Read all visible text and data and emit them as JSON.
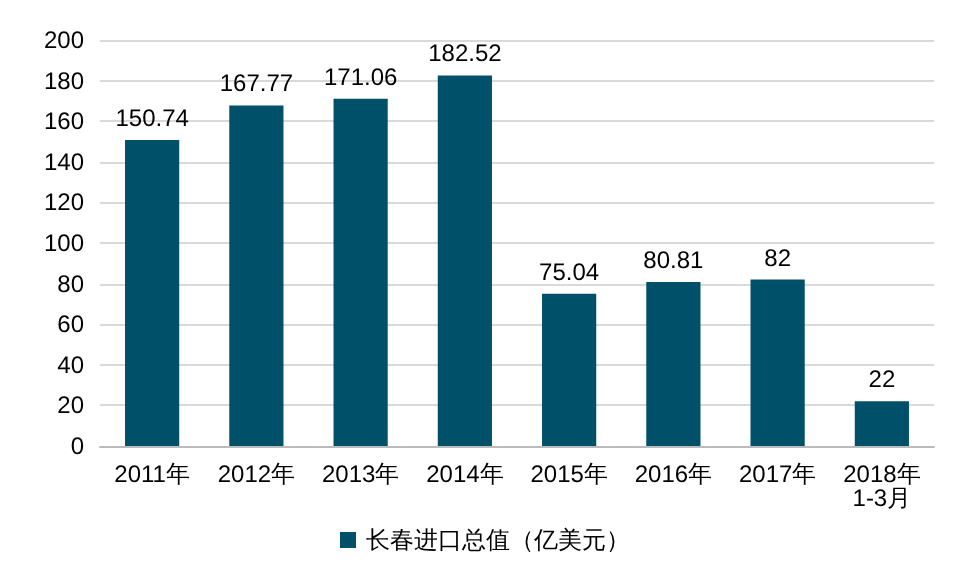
{
  "chart_data": {
    "type": "bar",
    "categories": [
      "2011年",
      "2012年",
      "2013年",
      "2014年",
      "2015年",
      "2016年",
      "2017年",
      "2018年\n1-3月"
    ],
    "series": [
      {
        "name": "长春进口总值（亿美元）",
        "color": "#00506a",
        "values": [
          150.74,
          167.77,
          171.06,
          182.52,
          75.04,
          80.81,
          82,
          22
        ]
      }
    ],
    "ylim": [
      0,
      200
    ],
    "yticks": [
      0,
      20,
      40,
      60,
      80,
      100,
      120,
      140,
      160,
      180,
      200
    ],
    "grid": "y",
    "legend": "bottom",
    "data_labels": true
  }
}
